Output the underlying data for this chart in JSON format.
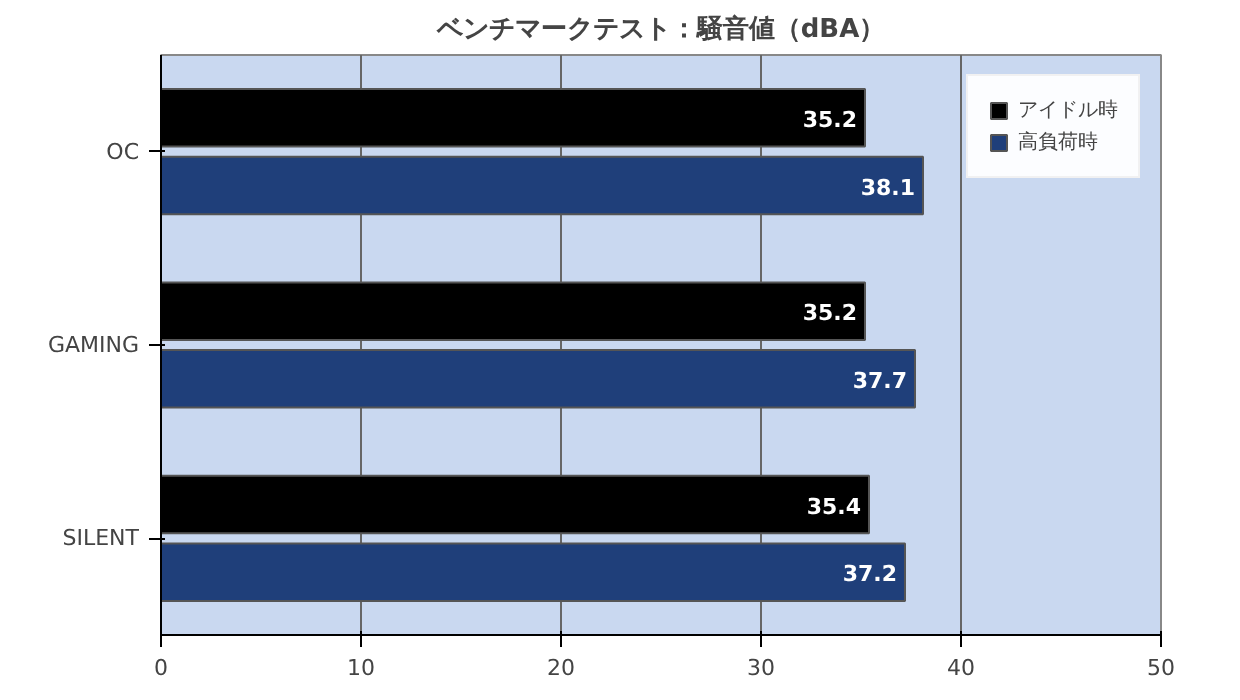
{
  "chart_data": {
    "type": "bar",
    "orientation": "horizontal",
    "title": "ベンチマークテスト：騒音値（dBA）",
    "categories": [
      "OC",
      "GAMING",
      "SILENT"
    ],
    "series": [
      {
        "name": "アイドル時",
        "color": "#000000",
        "values": [
          35.2,
          35.2,
          35.4
        ]
      },
      {
        "name": "高負荷時",
        "color": "#1f3f7a",
        "values": [
          38.1,
          37.7,
          37.2
        ]
      }
    ],
    "xlim": [
      0,
      50
    ],
    "xticks": [
      0,
      10,
      20,
      30,
      40,
      50
    ],
    "grid": "x",
    "legend": "top right",
    "data_labels": true
  }
}
